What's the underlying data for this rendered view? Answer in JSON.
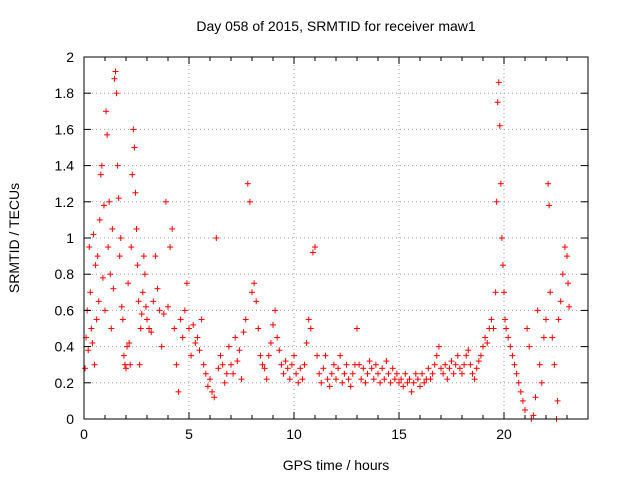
{
  "chart_data": {
    "type": "scatter",
    "title": "Day 058 of 2015, SRMTID for receiver maw1",
    "xlabel": "GPS time / hours",
    "ylabel": "SRMTID / TECUs",
    "xlim": [
      0,
      24
    ],
    "ylim": [
      0,
      2
    ],
    "xticks": [
      0,
      5,
      10,
      15,
      20
    ],
    "xtick_labels": [
      "0",
      "5",
      "10",
      "15",
      "20"
    ],
    "yticks": [
      0,
      0.2,
      0.4,
      0.6,
      0.8,
      1,
      1.2,
      1.4,
      1.6,
      1.8,
      2
    ],
    "ytick_labels": [
      "0",
      "0.2",
      "0.4",
      "0.6",
      "0.8",
      "1",
      "1.2",
      "1.4",
      "1.6",
      "1.8",
      "2"
    ],
    "grid": true,
    "marker": "+",
    "color": "#ff0000",
    "series": [
      {
        "name": "SRMTID",
        "points": [
          [
            0.05,
            0.28
          ],
          [
            0.1,
            0.45
          ],
          [
            0.15,
            0.6
          ],
          [
            0.2,
            0.38
          ],
          [
            0.25,
            0.95
          ],
          [
            0.3,
            0.7
          ],
          [
            0.35,
            0.5
          ],
          [
            0.4,
            0.42
          ],
          [
            0.45,
            1.02
          ],
          [
            0.5,
            0.3
          ],
          [
            0.55,
            0.85
          ],
          [
            0.6,
            0.55
          ],
          [
            0.65,
            0.9
          ],
          [
            0.7,
            0.65
          ],
          [
            0.75,
            1.1
          ],
          [
            0.8,
            1.35
          ],
          [
            0.85,
            1.4
          ],
          [
            0.9,
            0.78
          ],
          [
            0.95,
            1.18
          ],
          [
            1.0,
            0.6
          ],
          [
            1.05,
            1.7
          ],
          [
            1.1,
            1.57
          ],
          [
            1.15,
            0.95
          ],
          [
            1.2,
            1.2
          ],
          [
            1.25,
            0.8
          ],
          [
            1.3,
            0.5
          ],
          [
            1.35,
            1.05
          ],
          [
            1.4,
            0.72
          ],
          [
            1.45,
            1.88
          ],
          [
            1.5,
            1.92
          ],
          [
            1.55,
            1.8
          ],
          [
            1.6,
            1.4
          ],
          [
            1.65,
            1.22
          ],
          [
            1.7,
            0.9
          ],
          [
            1.75,
            1.0
          ],
          [
            1.8,
            0.62
          ],
          [
            1.85,
            0.55
          ],
          [
            1.9,
            0.35
          ],
          [
            1.95,
            0.3
          ],
          [
            2.0,
            0.28
          ],
          [
            2.05,
            0.4
          ],
          [
            2.1,
            0.75
          ],
          [
            2.15,
            0.42
          ],
          [
            2.2,
            0.3
          ],
          [
            2.25,
            0.95
          ],
          [
            2.3,
            1.35
          ],
          [
            2.35,
            1.6
          ],
          [
            2.4,
            1.5
          ],
          [
            2.45,
            1.25
          ],
          [
            2.5,
            1.05
          ],
          [
            2.55,
            0.85
          ],
          [
            2.6,
            0.65
          ],
          [
            2.65,
            0.3
          ],
          [
            2.7,
            0.5
          ],
          [
            2.75,
            0.58
          ],
          [
            2.8,
            0.7
          ],
          [
            2.85,
            0.9
          ],
          [
            2.9,
            0.8
          ],
          [
            2.95,
            0.62
          ],
          [
            3.0,
            0.55
          ],
          [
            3.1,
            0.5
          ],
          [
            3.2,
            0.48
          ],
          [
            3.3,
            0.65
          ],
          [
            3.4,
            0.9
          ],
          [
            3.5,
            0.72
          ],
          [
            3.6,
            0.6
          ],
          [
            3.7,
            0.4
          ],
          [
            3.8,
            0.58
          ],
          [
            3.9,
            1.2
          ],
          [
            4.0,
            0.62
          ],
          [
            4.1,
            0.95
          ],
          [
            4.2,
            1.05
          ],
          [
            4.3,
            0.5
          ],
          [
            4.4,
            0.3
          ],
          [
            4.5,
            0.15
          ],
          [
            4.6,
            0.55
          ],
          [
            4.7,
            0.45
          ],
          [
            4.8,
            0.6
          ],
          [
            4.9,
            0.75
          ],
          [
            5.0,
            0.5
          ],
          [
            5.1,
            0.35
          ],
          [
            5.2,
            0.52
          ],
          [
            5.3,
            0.42
          ],
          [
            5.4,
            0.45
          ],
          [
            5.5,
            0.38
          ],
          [
            5.6,
            0.55
          ],
          [
            5.7,
            0.3
          ],
          [
            5.8,
            0.25
          ],
          [
            5.9,
            0.18
          ],
          [
            6.0,
            0.22
          ],
          [
            6.1,
            0.15
          ],
          [
            6.2,
            0.12
          ],
          [
            6.3,
            1.0
          ],
          [
            6.4,
            0.28
          ],
          [
            6.5,
            0.35
          ],
          [
            6.6,
            0.3
          ],
          [
            6.7,
            0.2
          ],
          [
            6.8,
            0.25
          ],
          [
            6.9,
            0.4
          ],
          [
            7.0,
            0.3
          ],
          [
            7.1,
            0.25
          ],
          [
            7.2,
            0.45
          ],
          [
            7.3,
            0.32
          ],
          [
            7.4,
            0.38
          ],
          [
            7.5,
            0.22
          ],
          [
            7.6,
            0.48
          ],
          [
            7.7,
            0.55
          ],
          [
            7.8,
            1.3
          ],
          [
            7.9,
            1.2
          ],
          [
            8.0,
            0.7
          ],
          [
            8.1,
            0.75
          ],
          [
            8.2,
            0.65
          ],
          [
            8.3,
            0.5
          ],
          [
            8.4,
            0.35
          ],
          [
            8.5,
            0.3
          ],
          [
            8.6,
            0.28
          ],
          [
            8.7,
            0.22
          ],
          [
            8.8,
            0.35
          ],
          [
            8.9,
            0.42
          ],
          [
            9.0,
            0.52
          ],
          [
            9.1,
            0.6
          ],
          [
            9.2,
            0.45
          ],
          [
            9.3,
            0.38
          ],
          [
            9.4,
            0.3
          ],
          [
            9.5,
            0.25
          ],
          [
            9.6,
            0.32
          ],
          [
            9.7,
            0.28
          ],
          [
            9.8,
            0.22
          ],
          [
            9.9,
            0.3
          ],
          [
            10.0,
            0.35
          ],
          [
            10.1,
            0.25
          ],
          [
            10.2,
            0.2
          ],
          [
            10.3,
            0.28
          ],
          [
            10.4,
            0.22
          ],
          [
            10.5,
            0.3
          ],
          [
            10.6,
            0.42
          ],
          [
            10.7,
            0.55
          ],
          [
            10.8,
            0.5
          ],
          [
            10.9,
            0.92
          ],
          [
            11.0,
            0.95
          ],
          [
            11.1,
            0.35
          ],
          [
            11.2,
            0.25
          ],
          [
            11.3,
            0.2
          ],
          [
            11.4,
            0.28
          ],
          [
            11.5,
            0.35
          ],
          [
            11.6,
            0.22
          ],
          [
            11.7,
            0.18
          ],
          [
            11.8,
            0.25
          ],
          [
            11.9,
            0.3
          ],
          [
            12.0,
            0.22
          ],
          [
            12.1,
            0.28
          ],
          [
            12.2,
            0.35
          ],
          [
            12.3,
            0.2
          ],
          [
            12.4,
            0.25
          ],
          [
            12.5,
            0.3
          ],
          [
            12.6,
            0.22
          ],
          [
            12.7,
            0.18
          ],
          [
            12.8,
            0.25
          ],
          [
            12.9,
            0.3
          ],
          [
            13.0,
            0.5
          ],
          [
            13.1,
            0.3
          ],
          [
            13.2,
            0.22
          ],
          [
            13.3,
            0.28
          ],
          [
            13.4,
            0.2
          ],
          [
            13.5,
            0.25
          ],
          [
            13.6,
            0.32
          ],
          [
            13.7,
            0.28
          ],
          [
            13.8,
            0.22
          ],
          [
            13.9,
            0.3
          ],
          [
            14.0,
            0.25
          ],
          [
            14.1,
            0.2
          ],
          [
            14.2,
            0.28
          ],
          [
            14.3,
            0.22
          ],
          [
            14.4,
            0.32
          ],
          [
            14.5,
            0.25
          ],
          [
            14.6,
            0.2
          ],
          [
            14.7,
            0.28
          ],
          [
            14.8,
            0.22
          ],
          [
            14.9,
            0.25
          ],
          [
            15.0,
            0.2
          ],
          [
            15.1,
            0.22
          ],
          [
            15.2,
            0.18
          ],
          [
            15.3,
            0.25
          ],
          [
            15.4,
            0.2
          ],
          [
            15.5,
            0.22
          ],
          [
            15.6,
            0.15
          ],
          [
            15.7,
            0.2
          ],
          [
            15.8,
            0.25
          ],
          [
            15.9,
            0.22
          ],
          [
            16.0,
            0.18
          ],
          [
            16.1,
            0.25
          ],
          [
            16.2,
            0.2
          ],
          [
            16.3,
            0.22
          ],
          [
            16.4,
            0.28
          ],
          [
            16.5,
            0.22
          ],
          [
            16.6,
            0.25
          ],
          [
            16.7,
            0.3
          ],
          [
            16.8,
            0.35
          ],
          [
            16.9,
            0.4
          ],
          [
            17.0,
            0.28
          ],
          [
            17.1,
            0.25
          ],
          [
            17.2,
            0.3
          ],
          [
            17.3,
            0.22
          ],
          [
            17.4,
            0.28
          ],
          [
            17.5,
            0.32
          ],
          [
            17.6,
            0.25
          ],
          [
            17.7,
            0.3
          ],
          [
            17.8,
            0.35
          ],
          [
            17.9,
            0.28
          ],
          [
            18.0,
            0.25
          ],
          [
            18.1,
            0.3
          ],
          [
            18.2,
            0.35
          ],
          [
            18.3,
            0.38
          ],
          [
            18.4,
            0.3
          ],
          [
            18.5,
            0.25
          ],
          [
            18.6,
            0.22
          ],
          [
            18.7,
            0.28
          ],
          [
            18.8,
            0.32
          ],
          [
            18.9,
            0.35
          ],
          [
            19.0,
            0.4
          ],
          [
            19.1,
            0.45
          ],
          [
            19.2,
            0.42
          ],
          [
            19.3,
            0.5
          ],
          [
            19.4,
            0.55
          ],
          [
            19.5,
            0.5
          ],
          [
            19.6,
            0.7
          ],
          [
            19.65,
            1.2
          ],
          [
            19.7,
            1.75
          ],
          [
            19.75,
            1.86
          ],
          [
            19.8,
            1.62
          ],
          [
            19.85,
            1.3
          ],
          [
            19.9,
            1.0
          ],
          [
            19.95,
            0.85
          ],
          [
            20.0,
            0.7
          ],
          [
            20.05,
            0.55
          ],
          [
            20.1,
            0.5
          ],
          [
            20.2,
            0.45
          ],
          [
            20.3,
            0.4
          ],
          [
            20.4,
            0.35
          ],
          [
            20.5,
            0.3
          ],
          [
            20.6,
            0.25
          ],
          [
            20.7,
            0.2
          ],
          [
            20.8,
            0.15
          ],
          [
            20.9,
            0.1
          ],
          [
            21.0,
            0.05
          ],
          [
            21.1,
            0.5
          ],
          [
            21.2,
            0.4
          ],
          [
            21.3,
            0.0
          ],
          [
            21.4,
            0.02
          ],
          [
            21.5,
            0.12
          ],
          [
            21.6,
            0.6
          ],
          [
            21.7,
            0.3
          ],
          [
            21.8,
            0.2
          ],
          [
            21.9,
            0.45
          ],
          [
            22.0,
            0.55
          ],
          [
            22.1,
            1.3
          ],
          [
            22.15,
            1.18
          ],
          [
            22.2,
            0.7
          ],
          [
            22.3,
            0.45
          ],
          [
            22.4,
            0.3
          ],
          [
            22.5,
            0.0
          ],
          [
            22.55,
            0.1
          ],
          [
            22.6,
            0.55
          ],
          [
            22.7,
            0.65
          ],
          [
            22.8,
            0.8
          ],
          [
            22.9,
            0.95
          ],
          [
            23.0,
            0.9
          ],
          [
            23.05,
            0.75
          ],
          [
            23.1,
            0.62
          ]
        ]
      }
    ]
  }
}
